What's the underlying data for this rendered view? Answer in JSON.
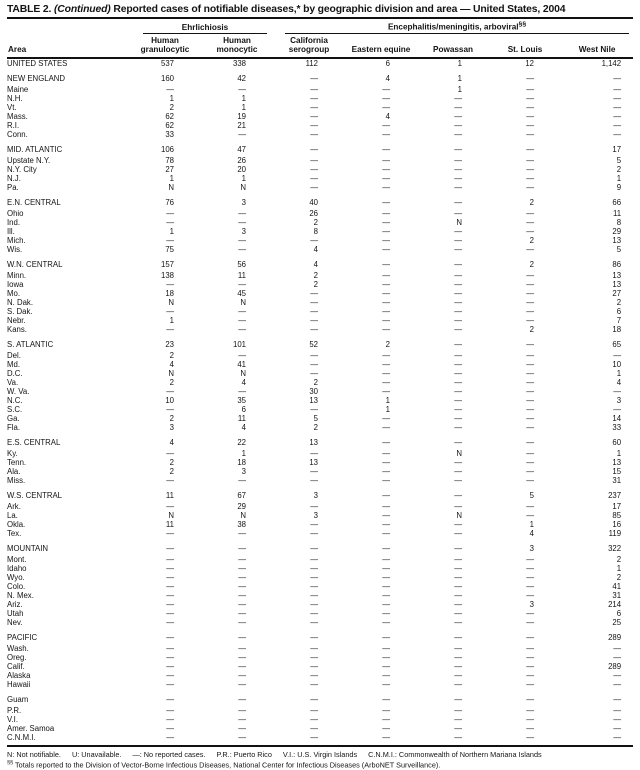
{
  "title": {
    "prefix": "TABLE 2.",
    "continued": "(Continued)",
    "rest": "Reported cases of notifiable diseases,* by geographic division and area — United States, 2004"
  },
  "table": {
    "area_header": "Area",
    "groups": [
      {
        "label": "Ehrlichiosis",
        "marker": ""
      },
      {
        "label": "Encephalitis/meningitis,  arboviral",
        "marker": "§§"
      }
    ],
    "columns": [
      "Human granulocytic",
      "Human monocytic",
      "California serogroup",
      "Eastern equine",
      "Powassan",
      "St. Louis",
      "West Nile"
    ],
    "sections": [
      {
        "rows": [
          {
            "area": "UNITED STATES",
            "values": [
              "537",
              "338",
              "112",
              "6",
              "1",
              "12",
              "1,142"
            ]
          }
        ]
      },
      {
        "rows": [
          {
            "area": "NEW ENGLAND",
            "values": [
              "160",
              "42",
              "—",
              "4",
              "1",
              "—",
              "—"
            ]
          },
          {
            "area": "Maine",
            "values": [
              "—",
              "—",
              "—",
              "—",
              "1",
              "—",
              "—"
            ]
          },
          {
            "area": "N.H.",
            "values": [
              "1",
              "1",
              "—",
              "—",
              "—",
              "—",
              "—"
            ]
          },
          {
            "area": "Vt.",
            "values": [
              "2",
              "1",
              "—",
              "—",
              "—",
              "—",
              "—"
            ]
          },
          {
            "area": "Mass.",
            "values": [
              "62",
              "19",
              "—",
              "4",
              "—",
              "—",
              "—"
            ]
          },
          {
            "area": "R.I.",
            "values": [
              "62",
              "21",
              "—",
              "—",
              "—",
              "—",
              "—"
            ]
          },
          {
            "area": "Conn.",
            "values": [
              "33",
              "—",
              "—",
              "—",
              "—",
              "—",
              "—"
            ]
          }
        ]
      },
      {
        "rows": [
          {
            "area": "MID. ATLANTIC",
            "values": [
              "106",
              "47",
              "—",
              "—",
              "—",
              "—",
              "17"
            ]
          },
          {
            "area": "Upstate N.Y.",
            "values": [
              "78",
              "26",
              "—",
              "—",
              "—",
              "—",
              "5"
            ]
          },
          {
            "area": "N.Y. City",
            "values": [
              "27",
              "20",
              "—",
              "—",
              "—",
              "—",
              "2"
            ]
          },
          {
            "area": "N.J.",
            "values": [
              "1",
              "1",
              "—",
              "—",
              "—",
              "—",
              "1"
            ]
          },
          {
            "area": "Pa.",
            "values": [
              "N",
              "N",
              "—",
              "—",
              "—",
              "—",
              "9"
            ]
          }
        ]
      },
      {
        "rows": [
          {
            "area": "E.N. CENTRAL",
            "values": [
              "76",
              "3",
              "40",
              "—",
              "—",
              "2",
              "66"
            ]
          },
          {
            "area": "Ohio",
            "values": [
              "—",
              "—",
              "26",
              "—",
              "—",
              "—",
              "11"
            ]
          },
          {
            "area": "Ind.",
            "values": [
              "—",
              "—",
              "2",
              "—",
              "N",
              "—",
              "8"
            ]
          },
          {
            "area": "Ill.",
            "values": [
              "1",
              "3",
              "8",
              "—",
              "—",
              "—",
              "29"
            ]
          },
          {
            "area": "Mich.",
            "values": [
              "—",
              "—",
              "—",
              "—",
              "—",
              "2",
              "13"
            ]
          },
          {
            "area": "Wis.",
            "values": [
              "75",
              "—",
              "4",
              "—",
              "—",
              "—",
              "5"
            ]
          }
        ]
      },
      {
        "rows": [
          {
            "area": "W.N. CENTRAL",
            "values": [
              "157",
              "56",
              "4",
              "—",
              "—",
              "2",
              "86"
            ]
          },
          {
            "area": "Minn.",
            "values": [
              "138",
              "11",
              "2",
              "—",
              "—",
              "—",
              "13"
            ]
          },
          {
            "area": "Iowa",
            "values": [
              "—",
              "—",
              "2",
              "—",
              "—",
              "—",
              "13"
            ]
          },
          {
            "area": "Mo.",
            "values": [
              "18",
              "45",
              "—",
              "—",
              "—",
              "—",
              "27"
            ]
          },
          {
            "area": "N. Dak.",
            "values": [
              "N",
              "N",
              "—",
              "—",
              "—",
              "—",
              "2"
            ]
          },
          {
            "area": "S. Dak.",
            "values": [
              "—",
              "—",
              "—",
              "—",
              "—",
              "—",
              "6"
            ]
          },
          {
            "area": "Nebr.",
            "values": [
              "1",
              "—",
              "—",
              "—",
              "—",
              "—",
              "7"
            ]
          },
          {
            "area": "Kans.",
            "values": [
              "—",
              "—",
              "—",
              "—",
              "—",
              "2",
              "18"
            ]
          }
        ]
      },
      {
        "rows": [
          {
            "area": "S. ATLANTIC",
            "values": [
              "23",
              "101",
              "52",
              "2",
              "—",
              "—",
              "65"
            ]
          },
          {
            "area": "Del.",
            "values": [
              "2",
              "—",
              "—",
              "—",
              "—",
              "—",
              "—"
            ]
          },
          {
            "area": "Md.",
            "values": [
              "4",
              "41",
              "—",
              "—",
              "—",
              "—",
              "10"
            ]
          },
          {
            "area": "D.C.",
            "values": [
              "N",
              "N",
              "—",
              "—",
              "—",
              "—",
              "1"
            ]
          },
          {
            "area": "Va.",
            "values": [
              "2",
              "4",
              "2",
              "—",
              "—",
              "—",
              "4"
            ]
          },
          {
            "area": "W. Va.",
            "values": [
              "—",
              "—",
              "30",
              "—",
              "—",
              "—",
              "—"
            ]
          },
          {
            "area": "N.C.",
            "values": [
              "10",
              "35",
              "13",
              "1",
              "—",
              "—",
              "3"
            ]
          },
          {
            "area": "S.C.",
            "values": [
              "—",
              "6",
              "—",
              "1",
              "—",
              "—",
              "—"
            ]
          },
          {
            "area": "Ga.",
            "values": [
              "2",
              "11",
              "5",
              "—",
              "—",
              "—",
              "14"
            ]
          },
          {
            "area": "Fla.",
            "values": [
              "3",
              "4",
              "2",
              "—",
              "—",
              "—",
              "33"
            ]
          }
        ]
      },
      {
        "rows": [
          {
            "area": "E.S. CENTRAL",
            "values": [
              "4",
              "22",
              "13",
              "—",
              "—",
              "—",
              "60"
            ]
          },
          {
            "area": "Ky.",
            "values": [
              "—",
              "1",
              "—",
              "—",
              "N",
              "—",
              "1"
            ]
          },
          {
            "area": "Tenn.",
            "values": [
              "2",
              "18",
              "13",
              "—",
              "—",
              "—",
              "13"
            ]
          },
          {
            "area": "Ala.",
            "values": [
              "2",
              "3",
              "—",
              "—",
              "—",
              "—",
              "15"
            ]
          },
          {
            "area": "Miss.",
            "values": [
              "—",
              "—",
              "—",
              "—",
              "—",
              "—",
              "31"
            ]
          }
        ]
      },
      {
        "rows": [
          {
            "area": "W.S. CENTRAL",
            "values": [
              "11",
              "67",
              "3",
              "—",
              "—",
              "5",
              "237"
            ]
          },
          {
            "area": "Ark.",
            "values": [
              "—",
              "29",
              "—",
              "—",
              "—",
              "—",
              "17"
            ]
          },
          {
            "area": "La.",
            "values": [
              "N",
              "N",
              "3",
              "—",
              "N",
              "—",
              "85"
            ]
          },
          {
            "area": "Okla.",
            "values": [
              "11",
              "38",
              "—",
              "—",
              "—",
              "1",
              "16"
            ]
          },
          {
            "area": "Tex.",
            "values": [
              "—",
              "—",
              "—",
              "—",
              "—",
              "4",
              "119"
            ]
          }
        ]
      },
      {
        "rows": [
          {
            "area": "MOUNTAIN",
            "values": [
              "—",
              "—",
              "—",
              "—",
              "—",
              "3",
              "322"
            ]
          },
          {
            "area": "Mont.",
            "values": [
              "—",
              "—",
              "—",
              "—",
              "—",
              "—",
              "2"
            ]
          },
          {
            "area": "Idaho",
            "values": [
              "—",
              "—",
              "—",
              "—",
              "—",
              "—",
              "1"
            ]
          },
          {
            "area": "Wyo.",
            "values": [
              "—",
              "—",
              "—",
              "—",
              "—",
              "—",
              "2"
            ]
          },
          {
            "area": "Colo.",
            "values": [
              "—",
              "—",
              "—",
              "—",
              "—",
              "—",
              "41"
            ]
          },
          {
            "area": "N. Mex.",
            "values": [
              "—",
              "—",
              "—",
              "—",
              "—",
              "—",
              "31"
            ]
          },
          {
            "area": "Ariz.",
            "values": [
              "—",
              "—",
              "—",
              "—",
              "—",
              "3",
              "214"
            ]
          },
          {
            "area": "Utah",
            "values": [
              "—",
              "—",
              "—",
              "—",
              "—",
              "—",
              "6"
            ]
          },
          {
            "area": "Nev.",
            "values": [
              "—",
              "—",
              "—",
              "—",
              "—",
              "—",
              "25"
            ]
          }
        ]
      },
      {
        "rows": [
          {
            "area": "PACIFIC",
            "values": [
              "—",
              "—",
              "—",
              "—",
              "—",
              "—",
              "289"
            ]
          },
          {
            "area": "Wash.",
            "values": [
              "—",
              "—",
              "—",
              "—",
              "—",
              "—",
              "—"
            ]
          },
          {
            "area": "Oreg.",
            "values": [
              "—",
              "—",
              "—",
              "—",
              "—",
              "—",
              "—"
            ]
          },
          {
            "area": "Calif.",
            "values": [
              "—",
              "—",
              "—",
              "—",
              "—",
              "—",
              "289"
            ]
          },
          {
            "area": "Alaska",
            "values": [
              "—",
              "—",
              "—",
              "—",
              "—",
              "—",
              "—"
            ]
          },
          {
            "area": "Hawaii",
            "values": [
              "—",
              "—",
              "—",
              "—",
              "—",
              "—",
              "—"
            ]
          }
        ]
      },
      {
        "rows": [
          {
            "area": "Guam",
            "values": [
              "—",
              "—",
              "—",
              "—",
              "—",
              "—",
              "—"
            ]
          },
          {
            "area": "P.R.",
            "values": [
              "—",
              "—",
              "—",
              "—",
              "—",
              "—",
              "—"
            ]
          },
          {
            "area": "V.I.",
            "values": [
              "—",
              "—",
              "—",
              "—",
              "—",
              "—",
              "—"
            ]
          },
          {
            "area": "Amer. Samoa",
            "values": [
              "—",
              "—",
              "—",
              "—",
              "—",
              "—",
              "—"
            ]
          },
          {
            "area": "C.N.M.I.",
            "values": [
              "—",
              "—",
              "—",
              "—",
              "—",
              "—",
              "—"
            ]
          }
        ]
      }
    ]
  },
  "footnotes": {
    "legend": [
      "N: Not notifiable.",
      "U: Unavailable.",
      "—: No reported cases.",
      "P.R.: Puerto Rico",
      "V.I.: U.S. Virgin Islands",
      "C.N.M.I.: Commonwealth of Northern Mariana Islands"
    ],
    "note2_marker": "§§",
    "note2_text": "Totals reported to the Division of Vector-Borne Infectious Diseases, National Center for Infectious Diseases (ArboNET Surveillance)."
  }
}
